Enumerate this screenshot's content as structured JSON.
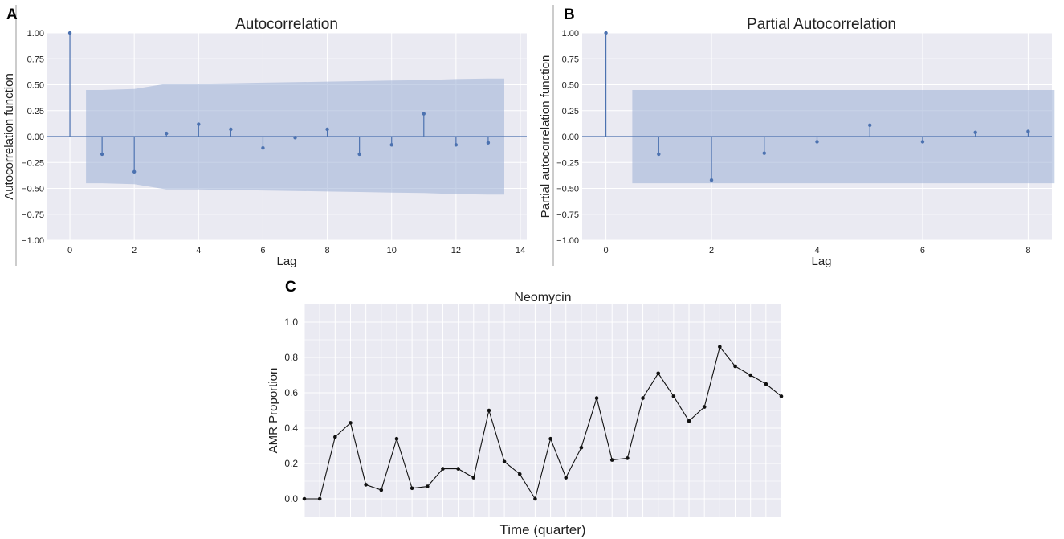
{
  "chart_data": [
    {
      "panel": "A",
      "type": "stem",
      "title": "Autocorrelation",
      "xlabel": "Lag",
      "ylabel": "Autocorrelation function",
      "xlim": [
        -0.7,
        14.2
      ],
      "ylim": [
        -1.0,
        1.0
      ],
      "xticks": [
        0,
        2,
        4,
        6,
        8,
        10,
        12,
        14
      ],
      "yticks": [
        -1.0,
        -0.75,
        -0.5,
        -0.25,
        0.0,
        0.25,
        0.5,
        0.75,
        1.0
      ],
      "ytick_labels": [
        "−1.00",
        "−0.75",
        "−0.50",
        "−0.25",
        "0.00",
        "0.25",
        "0.50",
        "0.75",
        "1.00"
      ],
      "x": [
        0,
        1,
        2,
        3,
        4,
        5,
        6,
        7,
        8,
        9,
        10,
        11,
        12,
        13
      ],
      "values": [
        1.0,
        -0.17,
        -0.34,
        0.03,
        0.12,
        0.07,
        -0.11,
        -0.01,
        0.07,
        -0.17,
        -0.08,
        0.22,
        -0.08,
        -0.06
      ],
      "confidence_band": {
        "x": [
          0.5,
          1,
          2,
          3,
          4,
          5,
          6,
          7,
          8,
          9,
          10,
          11,
          12,
          13,
          13.5
        ],
        "upper": [
          0.45,
          0.45,
          0.46,
          0.51,
          0.51,
          0.515,
          0.52,
          0.525,
          0.53,
          0.535,
          0.54,
          0.545,
          0.555,
          0.56,
          0.56
        ]
      }
    },
    {
      "panel": "B",
      "type": "stem",
      "title": "Partial Autocorrelation",
      "xlabel": "Lag",
      "ylabel": "Partial autocorrelation function",
      "xlim": [
        -0.45,
        8.45
      ],
      "ylim": [
        -1.0,
        1.0
      ],
      "xticks": [
        0,
        2,
        4,
        6,
        8
      ],
      "yticks": [
        -1.0,
        -0.75,
        -0.5,
        -0.25,
        0.0,
        0.25,
        0.5,
        0.75,
        1.0
      ],
      "ytick_labels": [
        "−1.00",
        "−0.75",
        "−0.50",
        "−0.25",
        "0.00",
        "0.25",
        "0.50",
        "0.75",
        "1.00"
      ],
      "x": [
        0,
        1,
        2,
        3,
        4,
        5,
        6,
        7,
        8
      ],
      "values": [
        1.0,
        -0.17,
        -0.42,
        -0.16,
        -0.05,
        0.11,
        -0.05,
        0.04,
        0.05
      ],
      "confidence_band": {
        "x": [
          0.5,
          8.5
        ],
        "upper": [
          0.45,
          0.45
        ]
      }
    },
    {
      "panel": "C",
      "type": "line",
      "title": "Neomycin",
      "xlabel": "Time (quarter)",
      "ylabel": "AMR Proportion",
      "xlim": [
        0,
        31
      ],
      "ylim": [
        -0.1,
        1.1
      ],
      "yticks": [
        0.0,
        0.2,
        0.4,
        0.6,
        0.8,
        1.0
      ],
      "ytick_labels": [
        "0.0",
        "0.2",
        "0.4",
        "0.6",
        "0.8",
        "1.0"
      ],
      "x": [
        0,
        1,
        2,
        3,
        4,
        5,
        6,
        7,
        8,
        9,
        10,
        11,
        12,
        13,
        14,
        15,
        16,
        17,
        18,
        19,
        20,
        21,
        22,
        23,
        24,
        25,
        26,
        27,
        28,
        29,
        30,
        31
      ],
      "values": [
        0.0,
        0.0,
        0.35,
        0.43,
        0.08,
        0.05,
        0.34,
        0.06,
        0.07,
        0.17,
        0.17,
        0.12,
        0.5,
        0.21,
        0.14,
        0.0,
        0.34,
        0.12,
        0.29,
        0.57,
        0.22,
        0.23,
        0.57,
        0.71,
        0.58,
        0.44,
        0.52,
        0.86,
        0.75,
        0.7,
        0.65,
        0.58
      ]
    }
  ]
}
